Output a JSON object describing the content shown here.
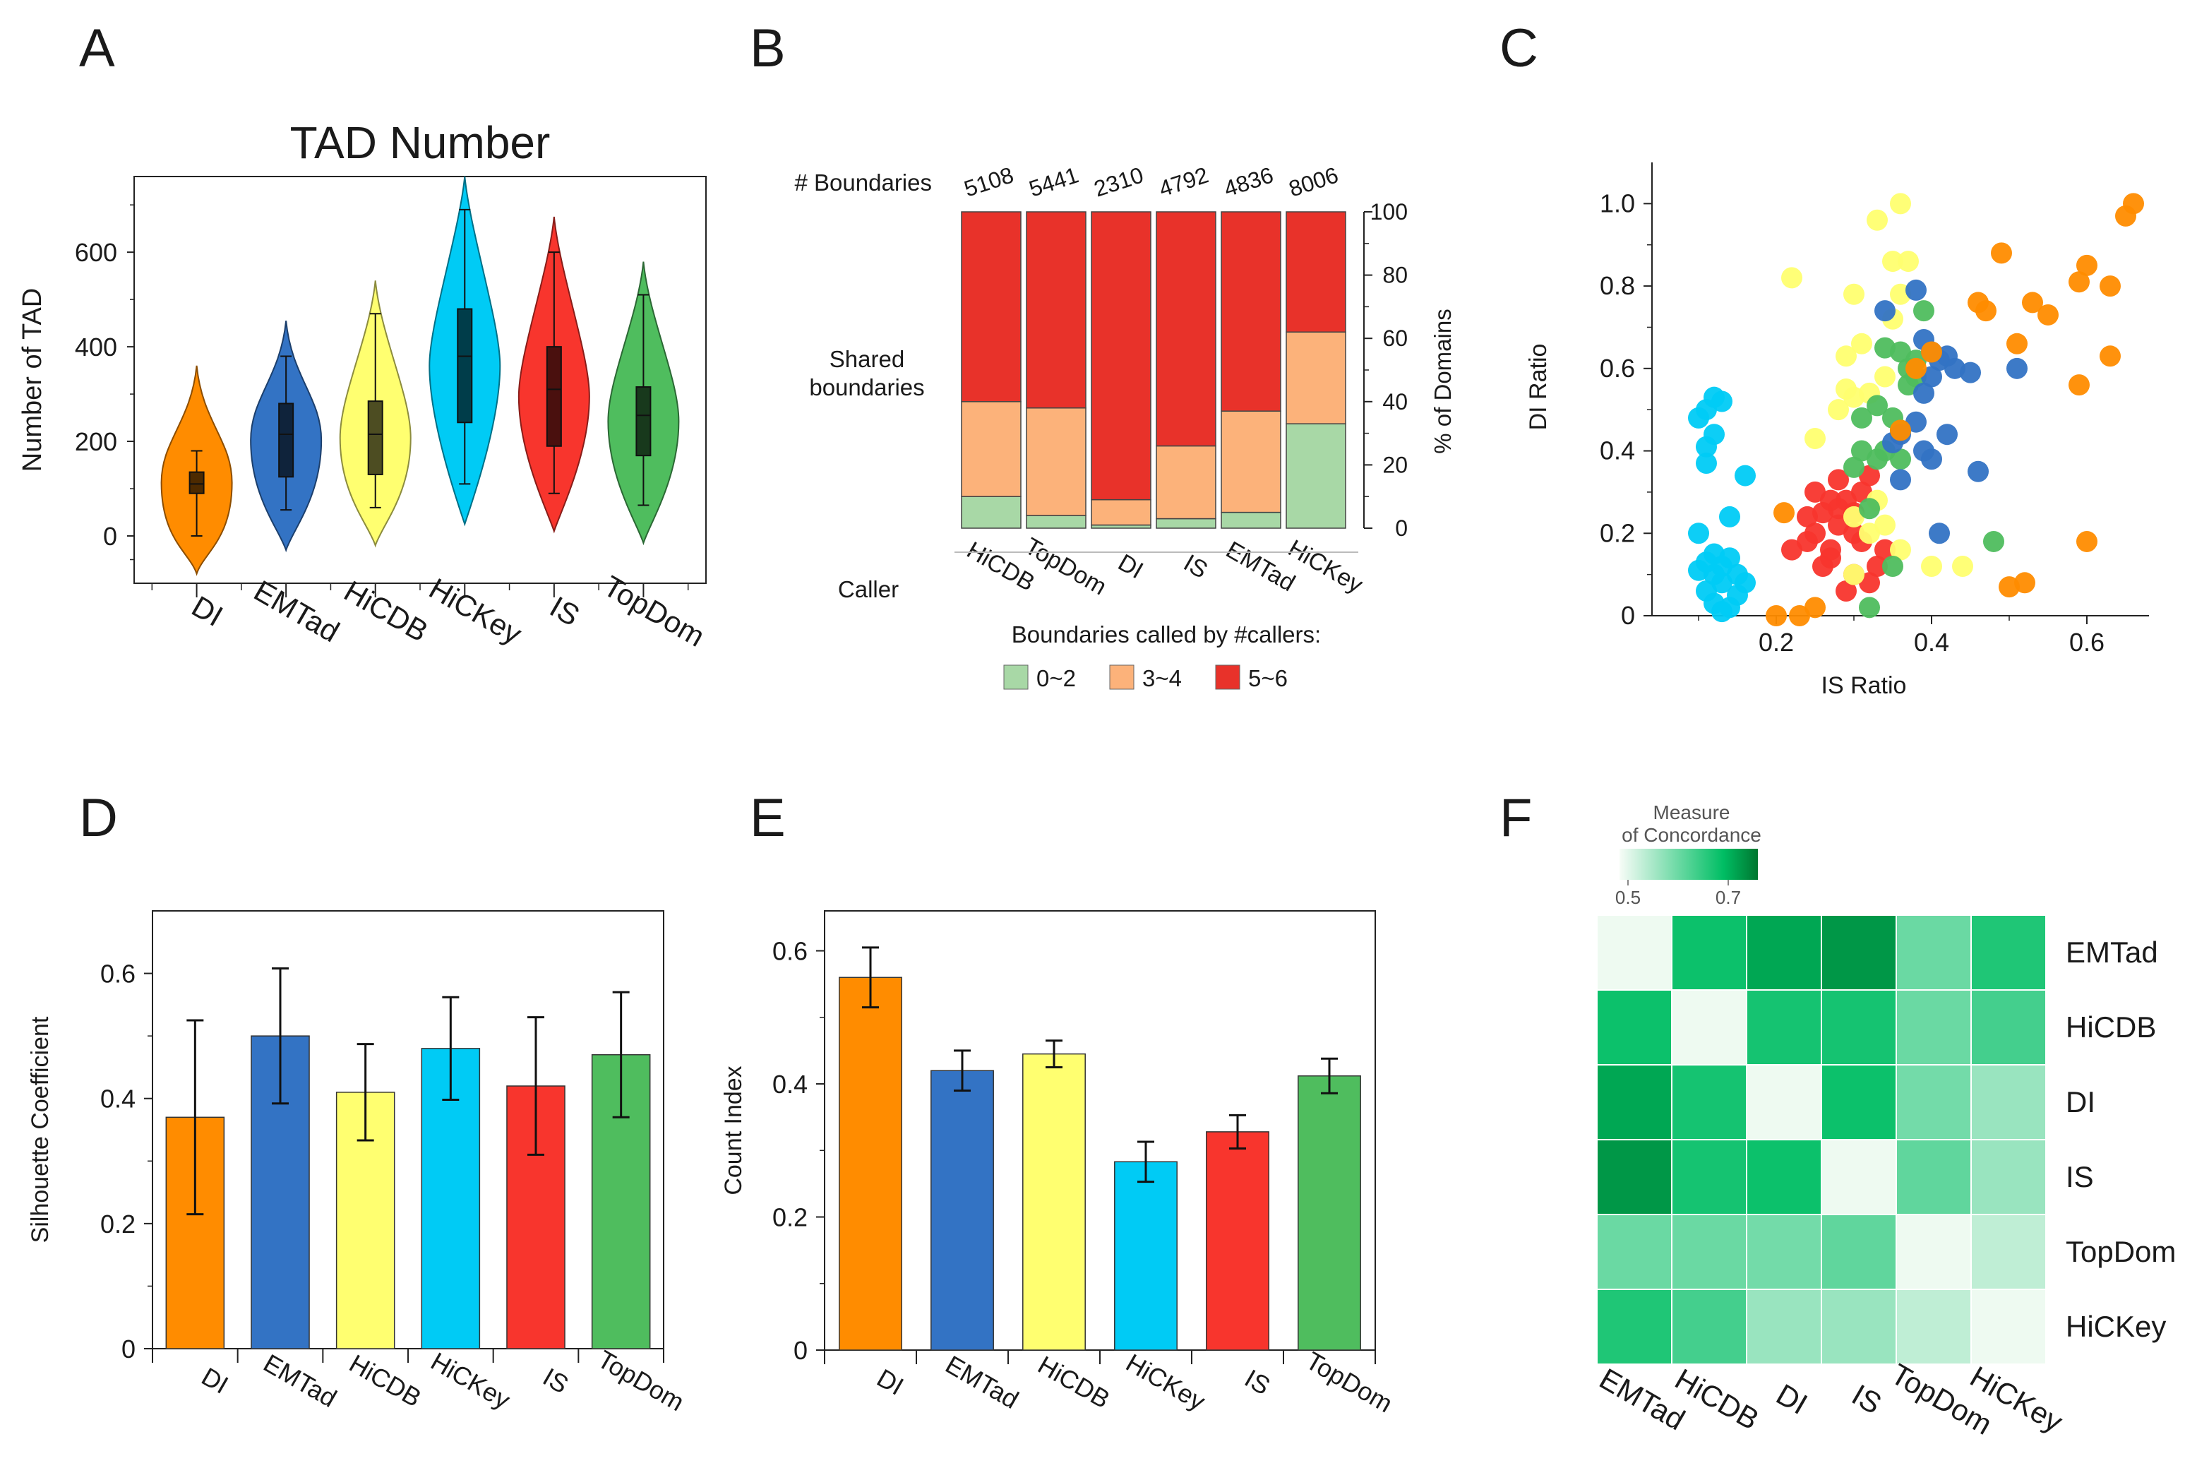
{
  "panel_letters": [
    "A",
    "B",
    "C",
    "D",
    "E",
    "F"
  ],
  "colors": {
    "DI": "#ff8c00",
    "EMTad": "#3373c4",
    "HiCDB": "#ffff70",
    "HiCKey": "#00cbf5",
    "IS": "#f8352d",
    "TopDom": "#4fbd5e",
    "share_low": "#a8d8a6",
    "share_mid": "#fcb27a",
    "share_high": "#e8322a"
  },
  "chart_data": [
    {
      "id": "A",
      "type": "violin",
      "title": "TAD Number",
      "xlabel": "",
      "ylabel": "Number of TAD",
      "ylim": [
        -100,
        760
      ],
      "yticks": [
        0,
        200,
        400,
        600
      ],
      "categories": [
        "DI",
        "EMTad",
        "HiCDB",
        "HiCKey",
        "IS",
        "TopDom"
      ],
      "series": [
        {
          "name": "DI",
          "min": 0,
          "q1": 90,
          "median": 110,
          "q3": 135,
          "max": 180,
          "extent": [
            -80,
            360
          ]
        },
        {
          "name": "EMTad",
          "min": 55,
          "q1": 125,
          "median": 215,
          "q3": 280,
          "max": 380,
          "extent": [
            -30,
            455
          ]
        },
        {
          "name": "HiCDB",
          "min": 60,
          "q1": 130,
          "median": 215,
          "q3": 285,
          "max": 470,
          "extent": [
            -20,
            540
          ]
        },
        {
          "name": "HiCKey",
          "min": 110,
          "q1": 240,
          "median": 380,
          "q3": 480,
          "max": 690,
          "extent": [
            25,
            760
          ]
        },
        {
          "name": "IS",
          "min": 90,
          "q1": 190,
          "median": 310,
          "q3": 400,
          "max": 600,
          "extent": [
            10,
            675
          ]
        },
        {
          "name": "TopDom",
          "min": 65,
          "q1": 170,
          "median": 255,
          "q3": 315,
          "max": 510,
          "extent": [
            -15,
            580
          ]
        }
      ]
    },
    {
      "id": "B",
      "type": "bar",
      "stacked": true,
      "title": "",
      "row_label_boundaries": "# Boundaries",
      "row_label_shared": [
        "Shared",
        "boundaries"
      ],
      "row_label_caller": "Caller",
      "ylabel": "% of Domains",
      "ylim": [
        0,
        100
      ],
      "yticks": [
        0,
        20,
        40,
        60,
        80,
        100
      ],
      "categories": [
        "HiCDB",
        "TopDom",
        "DI",
        "IS",
        "EMTad",
        "HiCKey"
      ],
      "boundary_counts": [
        "5108",
        "5441",
        "2310",
        "4792",
        "4836",
        "8006"
      ],
      "legend_title": "Boundaries called by #callers:",
      "series": [
        {
          "name": "0~2",
          "values": [
            10,
            4,
            1,
            3,
            5,
            33
          ]
        },
        {
          "name": "3~4",
          "values": [
            30,
            34,
            8,
            23,
            32,
            29
          ]
        },
        {
          "name": "5~6",
          "values": [
            60,
            62,
            91,
            74,
            63,
            38
          ]
        }
      ]
    },
    {
      "id": "C",
      "type": "scatter",
      "title": "",
      "xlabel": "IS Ratio",
      "ylabel": "DI Ratio",
      "xlim": [
        0.04,
        0.68
      ],
      "ylim": [
        0,
        1.1
      ],
      "xticks": [
        0.2,
        0.4,
        0.6
      ],
      "yticks": [
        0,
        0.2,
        0.4,
        0.6,
        0.8,
        1.0
      ],
      "yticklabels": [
        "0",
        "0.2",
        "0.4",
        "0.6",
        "0.8",
        "1.0"
      ],
      "series": [
        {
          "name": "HiCKey",
          "points": [
            [
              0.12,
              0.53
            ],
            [
              0.11,
              0.5
            ],
            [
              0.1,
              0.48
            ],
            [
              0.13,
              0.52
            ],
            [
              0.12,
              0.44
            ],
            [
              0.11,
              0.41
            ],
            [
              0.11,
              0.37
            ],
            [
              0.16,
              0.34
            ],
            [
              0.1,
              0.2
            ],
            [
              0.14,
              0.24
            ],
            [
              0.12,
              0.1
            ],
            [
              0.13,
              0.12
            ],
            [
              0.14,
              0.14
            ],
            [
              0.11,
              0.06
            ],
            [
              0.12,
              0.03
            ],
            [
              0.13,
              0.01
            ],
            [
              0.15,
              0.05
            ],
            [
              0.16,
              0.08
            ],
            [
              0.12,
              0.15
            ],
            [
              0.14,
              0.02
            ],
            [
              0.1,
              0.11
            ],
            [
              0.15,
              0.1
            ],
            [
              0.11,
              0.13
            ],
            [
              0.13,
              0.08
            ]
          ]
        },
        {
          "name": "IS",
          "points": [
            [
              0.25,
              0.3
            ],
            [
              0.27,
              0.28
            ],
            [
              0.28,
              0.26
            ],
            [
              0.3,
              0.25
            ],
            [
              0.22,
              0.16
            ],
            [
              0.24,
              0.18
            ],
            [
              0.25,
              0.2
            ],
            [
              0.26,
              0.12
            ],
            [
              0.27,
              0.16
            ],
            [
              0.28,
              0.22
            ],
            [
              0.29,
              0.28
            ],
            [
              0.31,
              0.3
            ],
            [
              0.32,
              0.34
            ],
            [
              0.3,
              0.1
            ],
            [
              0.31,
              0.18
            ],
            [
              0.33,
              0.12
            ],
            [
              0.34,
              0.16
            ],
            [
              0.29,
              0.06
            ],
            [
              0.24,
              0.24
            ],
            [
              0.26,
              0.25
            ],
            [
              0.3,
              0.2
            ],
            [
              0.32,
              0.08
            ],
            [
              0.28,
              0.33
            ],
            [
              0.27,
              0.14
            ]
          ]
        },
        {
          "name": "HiCDB",
          "points": [
            [
              0.36,
              1.0
            ],
            [
              0.33,
              0.96
            ],
            [
              0.22,
              0.82
            ],
            [
              0.35,
              0.86
            ],
            [
              0.37,
              0.86
            ],
            [
              0.3,
              0.78
            ],
            [
              0.36,
              0.78
            ],
            [
              0.29,
              0.63
            ],
            [
              0.29,
              0.55
            ],
            [
              0.3,
              0.53
            ],
            [
              0.32,
              0.54
            ],
            [
              0.34,
              0.58
            ],
            [
              0.25,
              0.43
            ],
            [
              0.28,
              0.5
            ],
            [
              0.31,
              0.66
            ],
            [
              0.35,
              0.72
            ],
            [
              0.3,
              0.24
            ],
            [
              0.32,
              0.2
            ],
            [
              0.34,
              0.22
            ],
            [
              0.36,
              0.16
            ],
            [
              0.33,
              0.28
            ],
            [
              0.4,
              0.12
            ],
            [
              0.44,
              0.12
            ],
            [
              0.3,
              0.1
            ]
          ]
        },
        {
          "name": "TopDom",
          "points": [
            [
              0.34,
              0.65
            ],
            [
              0.36,
              0.64
            ],
            [
              0.37,
              0.6
            ],
            [
              0.38,
              0.62
            ],
            [
              0.39,
              0.74
            ],
            [
              0.31,
              0.48
            ],
            [
              0.33,
              0.51
            ],
            [
              0.35,
              0.48
            ],
            [
              0.38,
              0.58
            ],
            [
              0.36,
              0.45
            ],
            [
              0.34,
              0.4
            ],
            [
              0.33,
              0.38
            ],
            [
              0.31,
              0.4
            ],
            [
              0.36,
              0.38
            ],
            [
              0.32,
              0.26
            ],
            [
              0.35,
              0.12
            ],
            [
              0.48,
              0.18
            ],
            [
              0.32,
              0.02
            ],
            [
              0.37,
              0.56
            ],
            [
              0.3,
              0.36
            ]
          ]
        },
        {
          "name": "EMTad",
          "points": [
            [
              0.38,
              0.79
            ],
            [
              0.39,
              0.67
            ],
            [
              0.4,
              0.64
            ],
            [
              0.41,
              0.62
            ],
            [
              0.42,
              0.63
            ],
            [
              0.43,
              0.6
            ],
            [
              0.45,
              0.59
            ],
            [
              0.4,
              0.58
            ],
            [
              0.39,
              0.54
            ],
            [
              0.38,
              0.47
            ],
            [
              0.36,
              0.44
            ],
            [
              0.39,
              0.4
            ],
            [
              0.4,
              0.38
            ],
            [
              0.42,
              0.44
            ],
            [
              0.35,
              0.42
            ],
            [
              0.36,
              0.33
            ],
            [
              0.46,
              0.35
            ],
            [
              0.51,
              0.6
            ],
            [
              0.41,
              0.2
            ],
            [
              0.34,
              0.74
            ]
          ]
        },
        {
          "name": "DI",
          "points": [
            [
              0.66,
              1.0
            ],
            [
              0.65,
              0.97
            ],
            [
              0.6,
              0.85
            ],
            [
              0.59,
              0.81
            ],
            [
              0.63,
              0.8
            ],
            [
              0.53,
              0.76
            ],
            [
              0.55,
              0.73
            ],
            [
              0.46,
              0.76
            ],
            [
              0.47,
              0.74
            ],
            [
              0.49,
              0.88
            ],
            [
              0.51,
              0.66
            ],
            [
              0.59,
              0.56
            ],
            [
              0.63,
              0.63
            ],
            [
              0.38,
              0.6
            ],
            [
              0.36,
              0.45
            ],
            [
              0.2,
              0.0
            ],
            [
              0.23,
              0.0
            ],
            [
              0.21,
              0.25
            ],
            [
              0.25,
              0.02
            ],
            [
              0.6,
              0.18
            ],
            [
              0.52,
              0.08
            ],
            [
              0.5,
              0.07
            ],
            [
              0.4,
              0.64
            ]
          ]
        }
      ]
    },
    {
      "id": "D",
      "type": "bar",
      "title": "",
      "xlabel": "",
      "ylabel": "Silhouette Coefficient",
      "ylim": [
        0,
        0.7
      ],
      "yticks": [
        0,
        0.2,
        0.4,
        0.6
      ],
      "yticklabels": [
        "0",
        "0.2",
        "0.4",
        "0.6"
      ],
      "categories": [
        "DI",
        "EMTad",
        "HiCDB",
        "HiCKey",
        "IS",
        "TopDom"
      ],
      "values": [
        0.37,
        0.5,
        0.41,
        0.48,
        0.42,
        0.47
      ],
      "errors": [
        0.155,
        0.108,
        0.077,
        0.082,
        0.11,
        0.1
      ]
    },
    {
      "id": "E",
      "type": "bar",
      "title": "",
      "xlabel": "",
      "ylabel": "Count Index",
      "ylim": [
        0,
        0.66
      ],
      "yticks": [
        0,
        0.2,
        0.4,
        0.6
      ],
      "yticklabels": [
        "0",
        "0.2",
        "0.4",
        "0.6"
      ],
      "categories": [
        "DI",
        "EMTad",
        "HiCDB",
        "HiCKey",
        "IS",
        "TopDom"
      ],
      "values": [
        0.56,
        0.42,
        0.445,
        0.283,
        0.328,
        0.412
      ],
      "errors": [
        0.045,
        0.03,
        0.02,
        0.03,
        0.025,
        0.026
      ]
    },
    {
      "id": "F",
      "type": "heatmap",
      "title": "",
      "legend_title": [
        "Measure",
        "of Concordance"
      ],
      "legend_ticks": [
        "0.5",
        "0.7"
      ],
      "scale": [
        0.45,
        0.8
      ],
      "rows": [
        "EMTad",
        "HiCDB",
        "DI",
        "IS",
        "TopDom",
        "HiCKey"
      ],
      "cols": [
        "EMTad",
        "HiCDB",
        "DI",
        "IS",
        "TopDom",
        "HiCKey"
      ],
      "values": [
        [
          0.46,
          0.7,
          0.74,
          0.76,
          0.6,
          0.68
        ],
        [
          0.7,
          0.46,
          0.69,
          0.69,
          0.6,
          0.64
        ],
        [
          0.74,
          0.69,
          0.46,
          0.7,
          0.59,
          0.55
        ],
        [
          0.76,
          0.69,
          0.7,
          0.46,
          0.61,
          0.55
        ],
        [
          0.6,
          0.6,
          0.59,
          0.61,
          0.46,
          0.51
        ],
        [
          0.68,
          0.64,
          0.55,
          0.55,
          0.51,
          0.46
        ]
      ]
    }
  ]
}
